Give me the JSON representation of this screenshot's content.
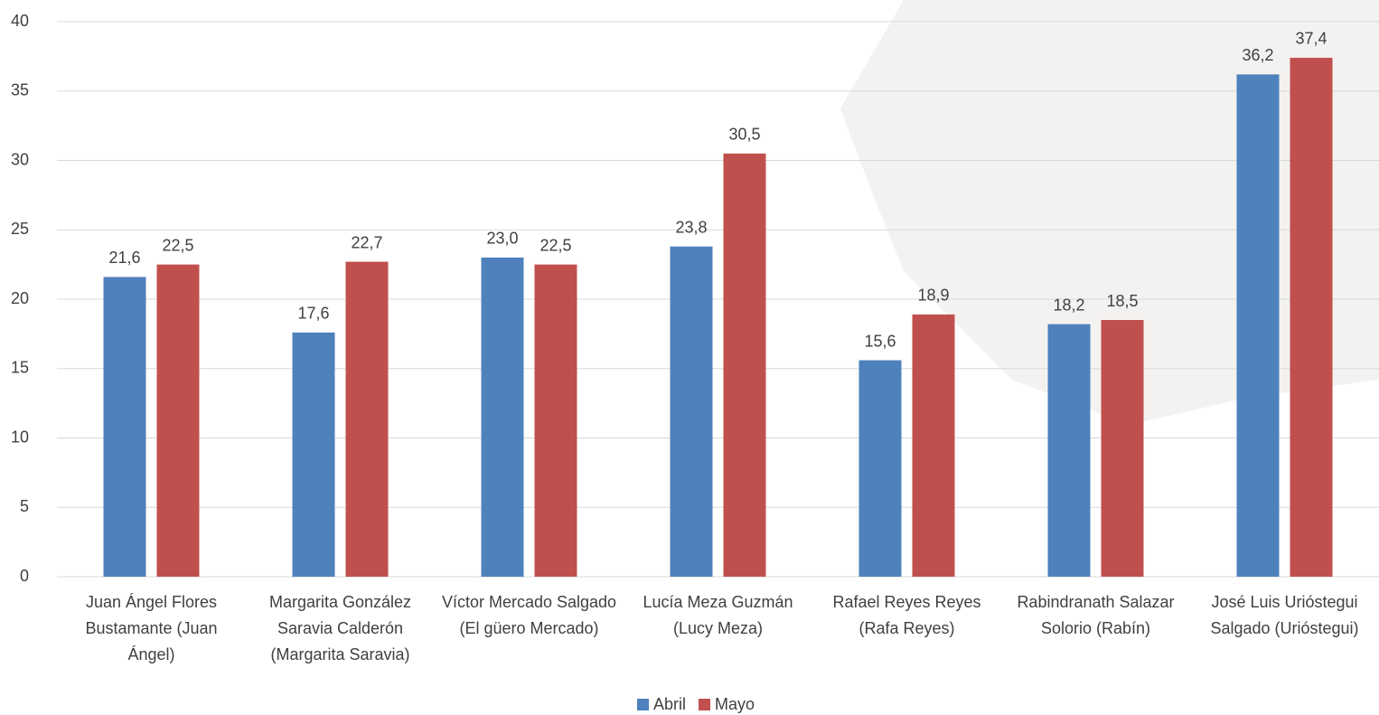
{
  "chart_data": {
    "type": "bar",
    "categories": [
      "Juan Ángel Flores Bustamante (Juan Ángel)",
      "Margarita González Saravia Calderón (Margarita Saravia)",
      "Víctor Mercado Salgado (El güero Mercado)",
      "Lucía Meza Guzmán (Lucy Meza)",
      "Rafael Reyes Reyes (Rafa Reyes)",
      "Rabindranath Salazar Solorio (Rabín)",
      "José Luis Urióstegui Salgado (Urióstegui)"
    ],
    "series": [
      {
        "name": "Abril",
        "color": "#4f81bd",
        "values": [
          21.6,
          17.6,
          23.0,
          23.8,
          15.6,
          18.2,
          36.2
        ],
        "value_labels": [
          "21,6",
          "17,6",
          "23,0",
          "23,8",
          "15,6",
          "18,2",
          "36,2"
        ]
      },
      {
        "name": "Mayo",
        "color": "#c0504d",
        "values": [
          22.5,
          22.7,
          22.5,
          30.5,
          18.9,
          18.5,
          37.4
        ],
        "value_labels": [
          "22,5",
          "22,7",
          "22,5",
          "30,5",
          "18,9",
          "18,5",
          "37,4"
        ]
      }
    ],
    "ylim": [
      0,
      40
    ],
    "yticks": [
      0,
      5,
      10,
      15,
      20,
      25,
      30,
      35,
      40
    ],
    "grid": true,
    "legend": "bottom"
  }
}
